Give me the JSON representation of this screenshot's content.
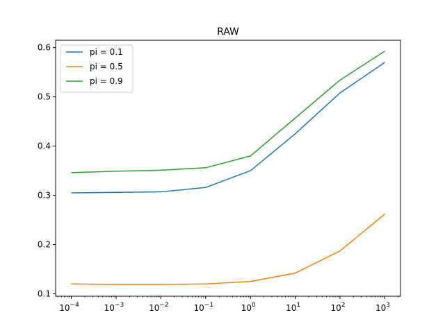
{
  "chart_data": {
    "type": "line",
    "title": "RAW",
    "xlabel": "",
    "ylabel": "",
    "xscale": "log",
    "x": [
      0.0001,
      0.001,
      0.01,
      0.1,
      1,
      10,
      100,
      1000
    ],
    "x_tick_labels": [
      "10",
      "10",
      "10",
      "10",
      "10",
      "10",
      "10",
      "10"
    ],
    "x_tick_exponents": [
      "−4",
      "−3",
      "−2",
      "−1",
      "0",
      "1",
      "2",
      "3"
    ],
    "y_ticks": [
      0.1,
      0.2,
      0.3,
      0.4,
      0.5,
      0.6
    ],
    "y_tick_labels": [
      "0.1",
      "0.2",
      "0.3",
      "0.4",
      "0.5",
      "0.6"
    ],
    "ylim": [
      0.095,
      0.615
    ],
    "grid": false,
    "legend_position": "top-left",
    "series": [
      {
        "name": "pi = 0.1",
        "color": "#1f77b4",
        "values": [
          0.305,
          0.306,
          0.307,
          0.316,
          0.35,
          0.425,
          0.508,
          0.57
        ]
      },
      {
        "name": "pi = 0.5",
        "color": "#ff7f0e",
        "values": [
          0.12,
          0.119,
          0.119,
          0.12,
          0.125,
          0.142,
          0.187,
          0.262
        ]
      },
      {
        "name": "pi = 0.9",
        "color": "#2ca02c",
        "values": [
          0.346,
          0.349,
          0.351,
          0.356,
          0.38,
          0.457,
          0.534,
          0.593
        ]
      }
    ]
  }
}
